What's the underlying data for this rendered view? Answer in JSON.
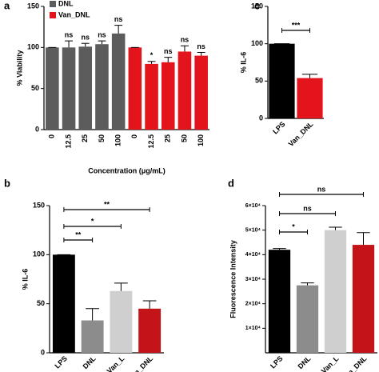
{
  "chart_data": [
    {
      "type": "bar",
      "panel": "a",
      "ylabel": "% Viability",
      "xlabel": "Concentration (μg/mL)",
      "categories": [
        "0",
        "12.5",
        "25",
        "50",
        "100",
        "0",
        "12.5",
        "25",
        "50",
        "100"
      ],
      "series": [
        {
          "name": "DNL",
          "color": "#5c5c5c",
          "values": [
            100,
            100,
            101,
            104,
            117,
            null,
            null,
            null,
            null,
            null
          ],
          "errors": [
            0,
            8,
            4,
            4,
            10,
            null,
            null,
            null,
            null,
            null
          ],
          "annotations": [
            null,
            "ns",
            "ns",
            "ns",
            "ns",
            null,
            null,
            null,
            null,
            null
          ]
        },
        {
          "name": "Van_DNL",
          "color": "#e3141b",
          "values": [
            null,
            null,
            null,
            null,
            null,
            100,
            80,
            82,
            95,
            90
          ],
          "errors": [
            null,
            null,
            null,
            null,
            null,
            0,
            3,
            6,
            7,
            4
          ],
          "annotations": [
            null,
            null,
            null,
            null,
            null,
            null,
            "*",
            "ns",
            "ns",
            "ns"
          ]
        }
      ],
      "ylim": [
        0,
        150
      ],
      "yticks": [
        0,
        50,
        100,
        150
      ]
    },
    {
      "type": "bar",
      "panel": "c",
      "ylabel": "% IL-6",
      "categories": [
        "LPS",
        "Van_DNL"
      ],
      "values": [
        100,
        54
      ],
      "errors": [
        0,
        5
      ],
      "colors": [
        "#000000",
        "#e3141b"
      ],
      "brackets": [
        "***"
      ],
      "ylim": [
        0,
        150
      ],
      "yticks": [
        0,
        50,
        100,
        150
      ]
    },
    {
      "type": "bar",
      "panel": "b",
      "ylabel": "% IL-6",
      "categories": [
        "LPS",
        "DNL",
        "Van_L",
        "Van_DNL"
      ],
      "values": [
        100,
        33,
        63,
        45
      ],
      "errors": [
        0,
        12,
        8,
        8
      ],
      "colors": [
        "#000000",
        "#8c8c8c",
        "#cfcfcf",
        "#c4141a"
      ],
      "brackets": [
        "**",
        "*",
        "**"
      ],
      "ylim": [
        0,
        150
      ],
      "yticks": [
        0,
        50,
        100,
        150
      ]
    },
    {
      "type": "bar",
      "panel": "d",
      "ylabel": "Fluorescence Intensity",
      "categories": [
        "LPS",
        "DNL",
        "Van_L",
        "Van_DNL"
      ],
      "values": [
        42000,
        27500,
        50000,
        44000
      ],
      "errors": [
        500,
        1000,
        1200,
        5000
      ],
      "colors": [
        "#000000",
        "#8c8c8c",
        "#cfcfcf",
        "#c4141a"
      ],
      "brackets": [
        "*",
        "ns",
        "ns"
      ],
      "ylim": [
        0,
        60000
      ],
      "yticks": [
        {
          "value": 10000,
          "label": "1×10⁴"
        },
        {
          "value": 20000,
          "label": "2×10⁴"
        },
        {
          "value": 30000,
          "label": "3×10⁴"
        },
        {
          "value": 40000,
          "label": "4×10⁴"
        },
        {
          "value": 50000,
          "label": "5×10⁴"
        },
        {
          "value": 60000,
          "label": "6×10⁴"
        }
      ]
    }
  ]
}
